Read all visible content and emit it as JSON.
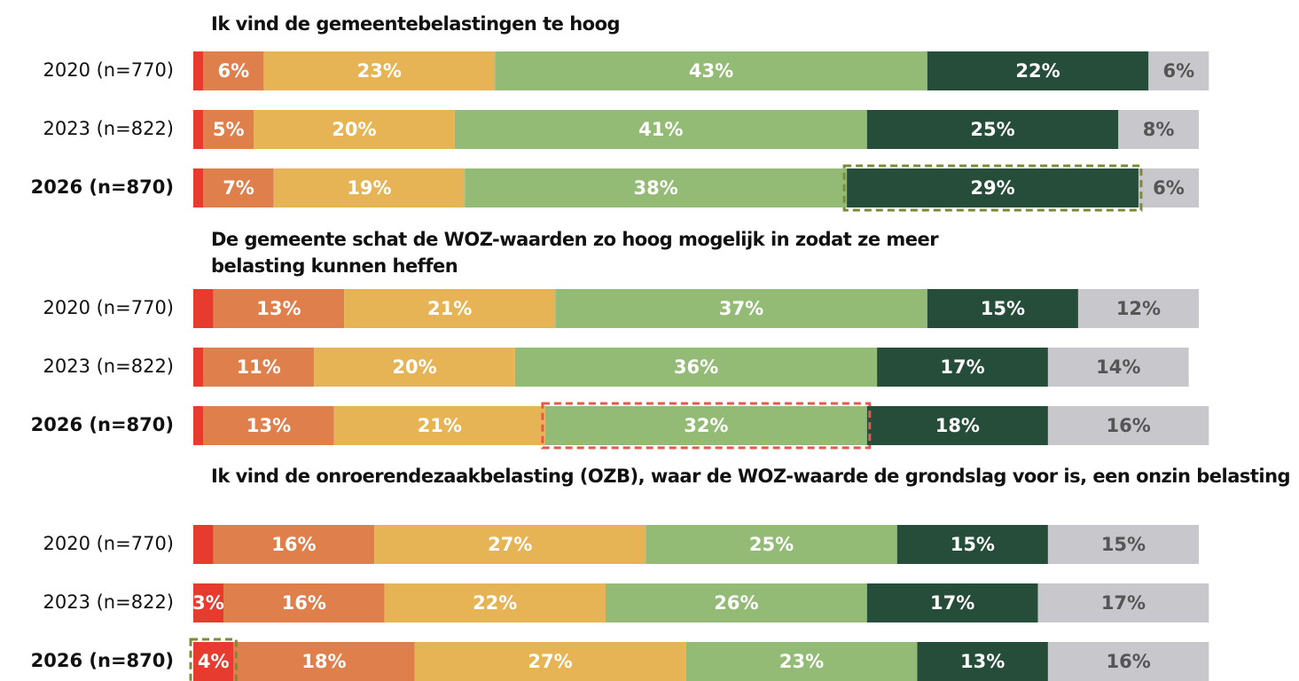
{
  "chart_data": [
    {
      "type": "bar",
      "orientation": "horizontal",
      "stacked": true,
      "title": "Ik vind de gemeentebelastingen te hoog",
      "categories": [
        "2020 (n=770)",
        "2023 (n=822)",
        "2026 (n=870)"
      ],
      "bold_category": 2,
      "series": [
        {
          "color": "#e63b2e",
          "values": [
            1,
            1,
            1
          ],
          "value_labels": [
            null,
            null,
            null
          ]
        },
        {
          "color": "#df7f4b",
          "values": [
            6,
            5,
            7
          ],
          "value_labels": [
            "6%",
            "5%",
            "7%"
          ]
        },
        {
          "color": "#e6b454",
          "values": [
            23,
            20,
            19
          ],
          "value_labels": [
            "23%",
            "20%",
            "19%"
          ]
        },
        {
          "color": "#93bb76",
          "values": [
            43,
            41,
            38
          ],
          "value_labels": [
            "43%",
            "41%",
            "38%"
          ]
        },
        {
          "color": "#264d3a",
          "values": [
            22,
            25,
            29
          ],
          "value_labels": [
            "22%",
            "25%",
            "29%"
          ]
        },
        {
          "color": "#c8c7cc",
          "values": [
            6,
            8,
            6
          ],
          "value_labels": [
            "6%",
            "8%",
            "6%"
          ]
        }
      ],
      "highlights": [
        {
          "series": 4,
          "index": 2,
          "color": "#7a8c3a"
        }
      ]
    },
    {
      "type": "bar",
      "orientation": "horizontal",
      "stacked": true,
      "title": "De gemeente schat de WOZ-waarden zo hoog mogelijk in zodat ze meer belasting kunnen heffen",
      "categories": [
        "2020 (n=770)",
        "2023 (n=822)",
        "2026 (n=870)"
      ],
      "bold_category": 2,
      "series": [
        {
          "color": "#e63b2e",
          "values": [
            2,
            1,
            1
          ],
          "value_labels": [
            null,
            null,
            null
          ]
        },
        {
          "color": "#df7f4b",
          "values": [
            13,
            11,
            13
          ],
          "value_labels": [
            "13%",
            "11%",
            "13%"
          ]
        },
        {
          "color": "#e6b454",
          "values": [
            21,
            20,
            21
          ],
          "value_labels": [
            "21%",
            "20%",
            "21%"
          ]
        },
        {
          "color": "#93bb76",
          "values": [
            37,
            36,
            32
          ],
          "value_labels": [
            "37%",
            "36%",
            "32%"
          ]
        },
        {
          "color": "#264d3a",
          "values": [
            15,
            17,
            18
          ],
          "value_labels": [
            "15%",
            "17%",
            "18%"
          ]
        },
        {
          "color": "#c8c7cc",
          "values": [
            12,
            14,
            16
          ],
          "value_labels": [
            "12%",
            "14%",
            "16%"
          ]
        }
      ],
      "highlights": [
        {
          "series": 3,
          "index": 2,
          "color": "#e8584a"
        }
      ]
    },
    {
      "type": "bar",
      "orientation": "horizontal",
      "stacked": true,
      "title": "Ik vind de onroerendezaakbelasting (OZB), waar de WOZ-waarde de grondslag voor is, een onzin belasting",
      "categories": [
        "2020 (n=770)",
        "2023 (n=822)",
        "2026 (n=870)"
      ],
      "bold_category": 2,
      "series": [
        {
          "color": "#e63b2e",
          "values": [
            2,
            3,
            4
          ],
          "value_labels": [
            null,
            "3%",
            "4%"
          ]
        },
        {
          "color": "#df7f4b",
          "values": [
            16,
            16,
            18
          ],
          "value_labels": [
            "16%",
            "16%",
            "18%"
          ]
        },
        {
          "color": "#e6b454",
          "values": [
            27,
            22,
            27
          ],
          "value_labels": [
            "27%",
            "22%",
            "27%"
          ]
        },
        {
          "color": "#93bb76",
          "values": [
            25,
            26,
            23
          ],
          "value_labels": [
            "25%",
            "26%",
            "23%"
          ]
        },
        {
          "color": "#264d3a",
          "values": [
            15,
            17,
            13
          ],
          "value_labels": [
            "15%",
            "17%",
            "13%"
          ]
        },
        {
          "color": "#c8c7cc",
          "values": [
            15,
            17,
            16
          ],
          "value_labels": [
            "15%",
            "17%",
            "16%"
          ]
        }
      ],
      "highlights": [
        {
          "series": 0,
          "index": 2,
          "color": "#7a8c3a"
        }
      ]
    }
  ]
}
